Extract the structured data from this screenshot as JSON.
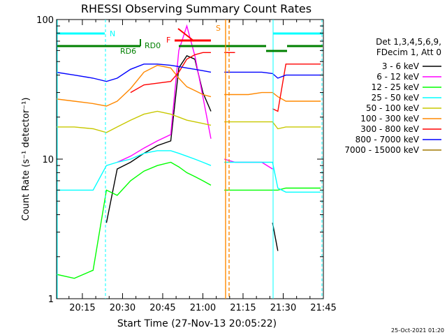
{
  "chart_data": {
    "type": "line",
    "title": "RHESSI Observing Summary Count Rates",
    "xlabel": "Start Time (27-Nov-13 20:05:22)",
    "ylabel": "Count Rate (s⁻¹ detector⁻¹)",
    "y_scale": "log",
    "ylim": [
      1,
      100
    ],
    "xlim": [
      "20:05:22",
      "21:45:00"
    ],
    "x_ticks": [
      "20:15",
      "20:30",
      "20:45",
      "21:00",
      "21:15",
      "21:30",
      "21:45"
    ],
    "y_ticks": [
      "1",
      "10",
      "100"
    ],
    "legend_header": [
      "Det 1,3,4,5,6,9,",
      "FDecim 1, Att 0"
    ],
    "legend_position": "right",
    "grid": false,
    "timestamp": "25-Oct-2021 01:20",
    "x": [
      "20:05",
      "20:12",
      "20:19",
      "20:24",
      "20:28",
      "20:33",
      "20:38",
      "20:43",
      "20:48",
      "20:51",
      "20:54",
      "20:57",
      "21:00",
      "21:03",
      "21:05",
      "21:08",
      "21:12",
      "21:17",
      "21:22",
      "21:26",
      "21:28",
      "21:31",
      "21:35",
      "21:40",
      "21:44"
    ],
    "series": [
      {
        "name": "3 - 6 keV",
        "color": "#000000",
        "values": [
          null,
          null,
          null,
          3.5,
          8.5,
          9.5,
          11,
          12.5,
          13.5,
          45,
          55,
          52,
          30,
          22,
          null,
          null,
          null,
          null,
          null,
          3.5,
          2.2,
          null,
          null,
          null,
          null
        ]
      },
      {
        "name": "6 - 12 keV",
        "color": "#ff00ff",
        "values": [
          null,
          null,
          null,
          null,
          9.5,
          10.5,
          12,
          13.5,
          15,
          60,
          90,
          55,
          28,
          14,
          null,
          10,
          9.5,
          9.5,
          9.5,
          8.5,
          null,
          null,
          null,
          null,
          null
        ]
      },
      {
        "name": "12 - 25 keV",
        "color": "#00ff00",
        "values": [
          1.5,
          1.4,
          1.6,
          6,
          5.5,
          7,
          8.2,
          9,
          9.5,
          8.8,
          8,
          7.5,
          7,
          6.5,
          null,
          6,
          6,
          6,
          6,
          6,
          6,
          6.2,
          6.2,
          6.2,
          6.2
        ]
      },
      {
        "name": "25 - 50 keV",
        "color": "#00ffff",
        "values": [
          6,
          6,
          6,
          9,
          9.5,
          10,
          11,
          11.5,
          11.5,
          11,
          10.5,
          10,
          9.5,
          9,
          null,
          9.5,
          9.5,
          9.5,
          9.5,
          9.5,
          6.2,
          5.8,
          5.8,
          5.8,
          5.8
        ]
      },
      {
        "name": "50 - 100 keV",
        "color": "#c8c800",
        "values": [
          17,
          17,
          16.5,
          15.5,
          17,
          19,
          21,
          22,
          21,
          20,
          19,
          18.5,
          18,
          17.5,
          null,
          18.5,
          18.5,
          18.5,
          18.5,
          18.5,
          16.5,
          17,
          17,
          17,
          17
        ]
      },
      {
        "name": "100 - 300 keV",
        "color": "#ff8800",
        "values": [
          27,
          26,
          25,
          24,
          26,
          32,
          42,
          47,
          45,
          38,
          33,
          31,
          29,
          28,
          null,
          29,
          29,
          29,
          30,
          30,
          28,
          26,
          26,
          26,
          26
        ]
      },
      {
        "name": "300 - 800 keV",
        "color": "#ff0000",
        "values": [
          null,
          null,
          null,
          null,
          null,
          30,
          34,
          35,
          36,
          42,
          52,
          56,
          58,
          58,
          null,
          58,
          58,
          null,
          null,
          23,
          22,
          48,
          48,
          48,
          48
        ]
      },
      {
        "name": "800 - 7000 keV",
        "color": "#0000ff",
        "values": [
          42,
          40,
          38,
          36,
          38,
          44,
          48,
          48,
          47,
          46,
          45,
          44,
          43,
          42,
          null,
          42,
          42,
          42,
          42,
          41,
          38,
          40,
          40,
          40,
          40
        ]
      },
      {
        "name": "7000 - 15000 keV",
        "color": "#a07800",
        "values": [
          null,
          null,
          null,
          null,
          null,
          null,
          null,
          null,
          null,
          null,
          null,
          null,
          null,
          null,
          null,
          null,
          null,
          null,
          null,
          null,
          null,
          null,
          null,
          null,
          null
        ]
      }
    ],
    "annotations": [
      {
        "label": "N",
        "color": "#00ffff"
      },
      {
        "label": "RD0",
        "color": "#008000"
      },
      {
        "label": "RD6",
        "color": "#008000"
      },
      {
        "label": "F",
        "color": "#ff0000"
      },
      {
        "label": "S",
        "color": "#ff8800"
      }
    ]
  }
}
